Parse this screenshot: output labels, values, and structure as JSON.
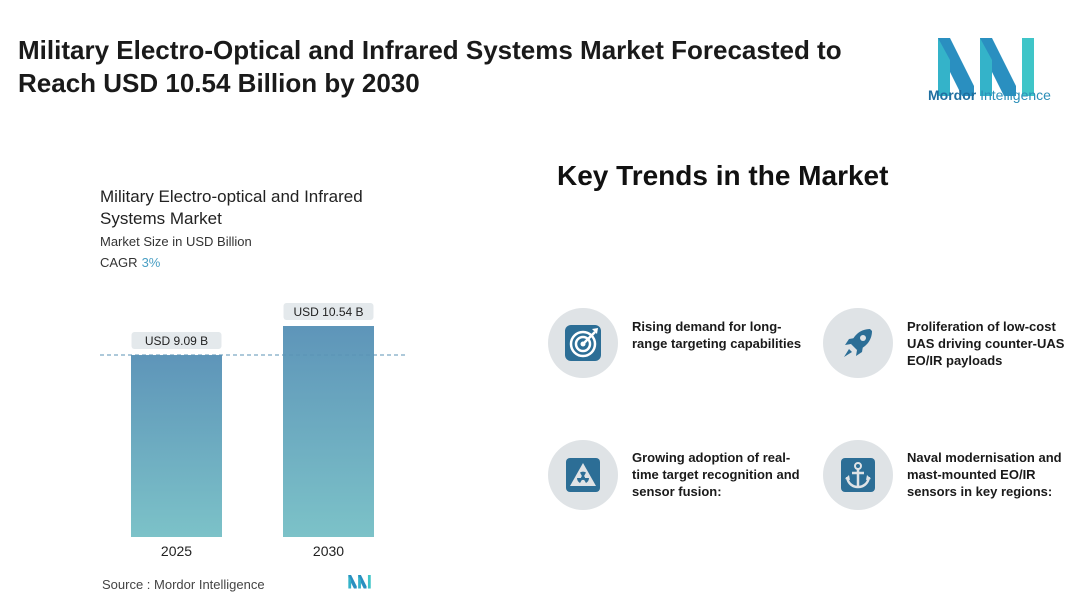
{
  "header": {
    "title": "Military Electro-Optical and Infrared Systems Market Forecasted to Reach USD 10.54 Billion by 2030",
    "brand_name": "Mordor",
    "brand_suffix": "Intelligence"
  },
  "colors": {
    "bar_top": "#5e95b9",
    "bar_bottom": "#7cc2c8",
    "label_bg": "#e4e9ec",
    "accent": "#4a9fc4",
    "icon_bg": "#dfe3e6",
    "icon_fg": "#2c6e96"
  },
  "chart_header": {
    "title": "Military Electro-optical and Infrared Systems Market",
    "subtitle": "Market Size in USD Billion",
    "cagr_label": "CAGR",
    "cagr_value": "3%"
  },
  "chart_data": {
    "type": "bar",
    "title": "Military Electro-optical and Infrared Systems Market",
    "ylabel": "Market Size in USD Billion",
    "categories": [
      "2025",
      "2030"
    ],
    "values": [
      9.09,
      10.54
    ],
    "data_labels": [
      "USD 9.09 B",
      "USD 10.54 B"
    ],
    "ylim": [
      0,
      10.54
    ],
    "reference_line_value": 9.09,
    "grid": false
  },
  "source": {
    "label": "Source :",
    "name": "Mordor Intelligence"
  },
  "trends": {
    "title": "Key Trends in the Market",
    "items": [
      {
        "icon": "target-icon",
        "text": "Rising demand for long-range targeting capabilities"
      },
      {
        "icon": "rocket-icon",
        "text": "Proliferation of low-cost UAS driving counter-UAS EO/IR payloads"
      },
      {
        "icon": "radiation-icon",
        "text": "Growing adoption of real-time target recognition and sensor fusion:"
      },
      {
        "icon": "anchor-icon",
        "text": "Naval modernisation and mast-mounted EO/IR sensors in key regions:"
      }
    ]
  }
}
